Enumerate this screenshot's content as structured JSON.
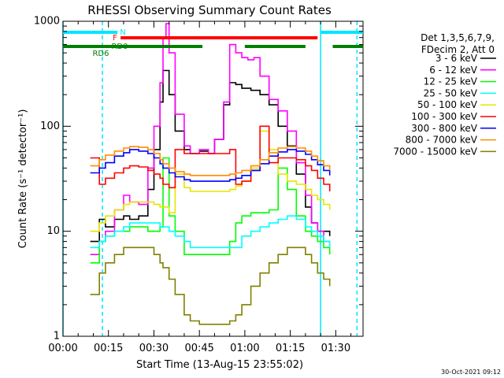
{
  "chart_data": {
    "type": "line",
    "title": "RHESSI Observing Summary Count Rates",
    "xlabel": "Start Time (13-Aug-15 23:55:02)",
    "ylabel": "Count Rate (s⁻¹ detector⁻¹)",
    "y_scale": "log",
    "ylim": [
      1,
      1000
    ],
    "xlim": [
      0,
      99
    ],
    "x_units": "minutes after start time",
    "x_ticks": [
      "00:00",
      "00:15",
      "00:30",
      "00:45",
      "01:00",
      "01:15",
      "01:30"
    ],
    "y_ticks": [
      "1",
      "10",
      "100",
      "1000"
    ],
    "legend_header": [
      "Det 1,3,5,6,7,9,",
      "FDecim 2, Att 0"
    ],
    "legend_position": "right",
    "timestamp": "30-Oct-2021 09:12",
    "flags": [
      {
        "label": "N",
        "color": "#00e5ff",
        "spans": [
          [
            0,
            18
          ],
          [
            85,
            99
          ]
        ]
      },
      {
        "label": "F",
        "color": "#ff0000",
        "spans": [
          [
            19,
            84
          ]
        ]
      },
      {
        "label": "RD0",
        "color": "#007f00",
        "spans": [
          [
            18,
            46
          ],
          [
            60,
            80
          ]
        ]
      },
      {
        "label": "RD6",
        "color": "#007f00",
        "spans": [
          [
            0,
            18
          ],
          [
            89,
            99
          ]
        ]
      }
    ],
    "vlines": [
      {
        "x": 0,
        "color": "#00e5ff",
        "style": "solid"
      },
      {
        "x": 13,
        "color": "#00e5ff",
        "style": "dashed"
      },
      {
        "x": 85,
        "color": "#00e5ff",
        "style": "solid"
      },
      {
        "x": 97,
        "color": "#00e5ff",
        "style": "dashed"
      }
    ],
    "series": [
      {
        "name": "3 - 6 keV",
        "color": "#000000",
        "x": [
          9,
          12,
          14,
          17,
          20,
          22,
          25,
          28,
          30,
          32,
          33,
          35,
          37,
          40,
          42,
          45,
          48,
          50,
          53,
          55,
          57,
          59,
          62,
          65,
          68,
          71,
          74,
          77,
          80,
          82,
          84,
          86,
          88
        ],
        "y": [
          8,
          13,
          11,
          13,
          14,
          13,
          14,
          25,
          60,
          170,
          340,
          200,
          90,
          60,
          55,
          58,
          55,
          75,
          160,
          260,
          250,
          230,
          220,
          200,
          160,
          100,
          65,
          35,
          17,
          12,
          10,
          10,
          9
        ]
      },
      {
        "name": "6 - 12 keV",
        "color": "#ff00ff",
        "x": [
          9,
          12,
          14,
          17,
          20,
          22,
          25,
          28,
          30,
          32,
          33,
          34,
          35,
          37,
          40,
          42,
          45,
          48,
          50,
          53,
          55,
          57,
          59,
          61,
          63,
          65,
          68,
          71,
          74,
          77,
          80,
          82,
          84,
          86,
          88
        ],
        "y": [
          6,
          8,
          10,
          16,
          22,
          19,
          18,
          40,
          100,
          260,
          700,
          950,
          500,
          130,
          65,
          55,
          60,
          55,
          75,
          170,
          600,
          500,
          450,
          430,
          450,
          300,
          180,
          140,
          90,
          45,
          22,
          12,
          10,
          8,
          7
        ]
      },
      {
        "name": "12 - 25 keV",
        "color": "#00ff00",
        "x": [
          9,
          12,
          14,
          17,
          20,
          22,
          25,
          28,
          30,
          32,
          33,
          35,
          37,
          40,
          42,
          45,
          48,
          50,
          53,
          55,
          57,
          59,
          62,
          65,
          68,
          71,
          74,
          77,
          80,
          82,
          84,
          86,
          88
        ],
        "y": [
          5,
          8,
          9,
          10,
          10,
          11,
          11,
          10,
          10,
          11,
          50,
          14,
          10,
          6,
          6,
          6,
          6,
          6,
          6,
          8,
          12,
          14,
          15,
          15,
          16,
          40,
          25,
          14,
          10,
          9,
          8,
          7,
          6
        ]
      },
      {
        "name": "25 - 50 keV",
        "color": "#00ffff",
        "x": [
          9,
          12,
          14,
          17,
          20,
          22,
          25,
          28,
          30,
          32,
          33,
          35,
          37,
          40,
          42,
          45,
          48,
          50,
          53,
          55,
          57,
          59,
          62,
          65,
          68,
          71,
          74,
          77,
          80,
          82,
          84,
          86,
          88
        ],
        "y": [
          7,
          8,
          9,
          10,
          11,
          12,
          12,
          12,
          12,
          11,
          11,
          10,
          9,
          8,
          7,
          7,
          7,
          7,
          7,
          7,
          7,
          9,
          10,
          11,
          12,
          13,
          14,
          13,
          11,
          10,
          9,
          8,
          7
        ]
      },
      {
        "name": "50 - 100 keV",
        "color": "#e6e600",
        "x": [
          9,
          12,
          14,
          17,
          20,
          22,
          25,
          28,
          30,
          32,
          33,
          35,
          37,
          40,
          42,
          45,
          48,
          50,
          53,
          55,
          57,
          59,
          62,
          65,
          68,
          71,
          74,
          77,
          80,
          82,
          84,
          86,
          88
        ],
        "y": [
          10,
          12,
          14,
          16,
          18,
          19,
          19,
          19,
          18,
          17,
          17,
          15,
          35,
          26,
          24,
          24,
          24,
          24,
          24,
          25,
          27,
          30,
          40,
          90,
          60,
          35,
          30,
          28,
          25,
          22,
          20,
          18,
          16
        ]
      },
      {
        "name": "100 - 300 keV",
        "color": "#ff0000",
        "x": [
          9,
          12,
          14,
          17,
          20,
          22,
          25,
          28,
          30,
          32,
          33,
          35,
          37,
          40,
          42,
          45,
          48,
          50,
          53,
          55,
          57,
          59,
          62,
          65,
          68,
          71,
          74,
          77,
          80,
          82,
          84,
          86,
          88
        ],
        "y": [
          50,
          28,
          32,
          36,
          40,
          42,
          41,
          38,
          35,
          32,
          28,
          26,
          60,
          55,
          55,
          55,
          55,
          55,
          55,
          60,
          28,
          30,
          38,
          100,
          45,
          50,
          50,
          48,
          42,
          38,
          32,
          28,
          24
        ]
      },
      {
        "name": "300 - 800 keV",
        "color": "#0000ff",
        "x": [
          9,
          12,
          14,
          17,
          20,
          22,
          25,
          28,
          30,
          32,
          33,
          35,
          37,
          40,
          42,
          45,
          48,
          50,
          53,
          55,
          57,
          59,
          62,
          65,
          68,
          71,
          74,
          77,
          80,
          82,
          84,
          86,
          88
        ],
        "y": [
          36,
          40,
          45,
          52,
          56,
          60,
          58,
          55,
          50,
          44,
          40,
          36,
          33,
          31,
          30,
          30,
          30,
          30,
          30,
          31,
          32,
          34,
          38,
          44,
          52,
          57,
          60,
          58,
          54,
          48,
          43,
          38,
          34
        ]
      },
      {
        "name": "800 - 7000 keV",
        "color": "#ff8c00",
        "x": [
          9,
          12,
          14,
          17,
          20,
          22,
          25,
          28,
          30,
          32,
          33,
          35,
          37,
          40,
          42,
          45,
          48,
          50,
          53,
          55,
          57,
          59,
          62,
          65,
          68,
          71,
          74,
          77,
          80,
          82,
          84,
          86,
          88
        ],
        "y": [
          42,
          48,
          53,
          58,
          62,
          64,
          63,
          60,
          55,
          48,
          44,
          40,
          37,
          35,
          34,
          34,
          34,
          34,
          34,
          35,
          36,
          38,
          42,
          48,
          56,
          62,
          64,
          62,
          58,
          52,
          47,
          42,
          38
        ]
      },
      {
        "name": "7000 - 15000 keV",
        "color": "#808000",
        "x": [
          9,
          12,
          14,
          17,
          20,
          22,
          25,
          28,
          30,
          32,
          33,
          35,
          37,
          40,
          42,
          45,
          48,
          50,
          53,
          55,
          57,
          59,
          62,
          65,
          68,
          71,
          74,
          77,
          80,
          82,
          84,
          86,
          88
        ],
        "y": [
          2.5,
          4,
          5,
          6,
          7,
          7,
          7,
          7,
          6,
          5,
          4.5,
          3.5,
          2.5,
          1.6,
          1.4,
          1.3,
          1.3,
          1.3,
          1.3,
          1.4,
          1.6,
          2,
          3,
          4,
          5,
          6,
          7,
          7,
          6,
          5,
          4,
          3.5,
          3
        ]
      }
    ]
  }
}
